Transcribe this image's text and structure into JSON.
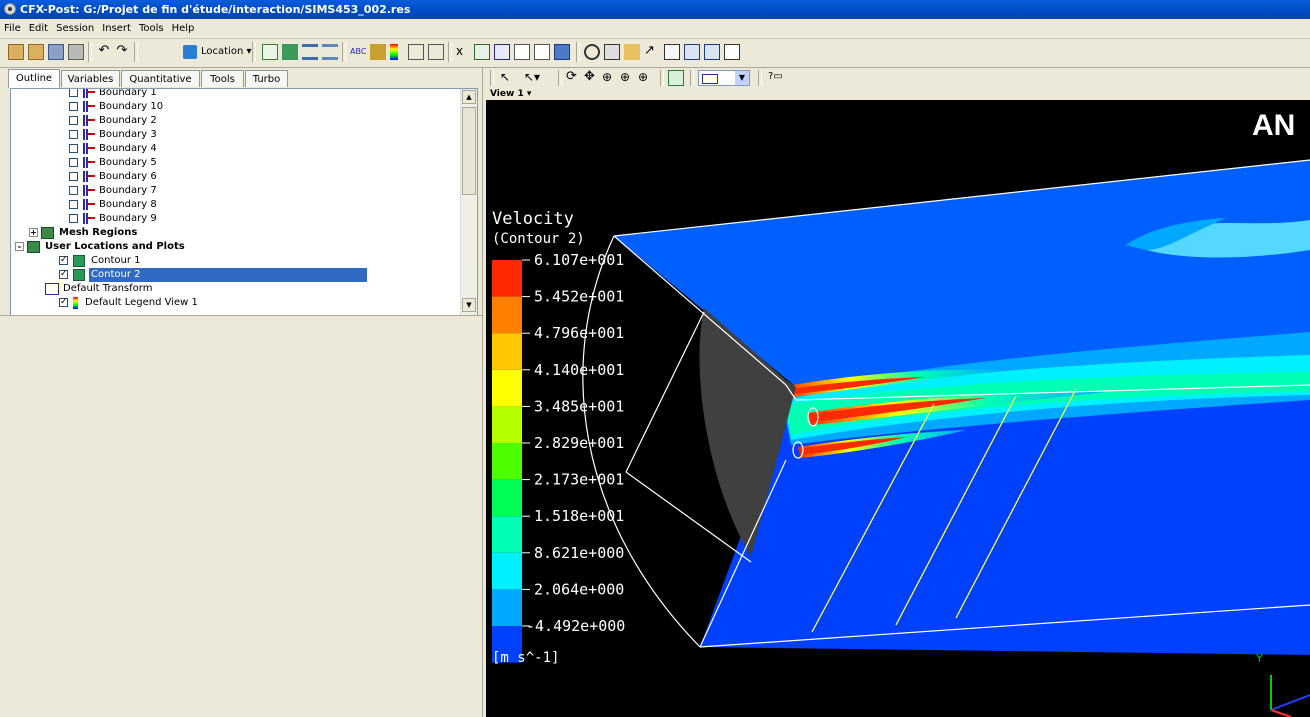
{
  "window": {
    "title": "CFX-Post: G:/Projet de fin d'étude/interaction/SIMS453_002.res"
  },
  "menu": [
    "File",
    "Edit",
    "Session",
    "Insert",
    "Tools",
    "Help"
  ],
  "toolbar": {
    "location_label": "Location"
  },
  "left_tabs": [
    "Outline",
    "Variables",
    "Quantitative",
    "Tools",
    "Turbo"
  ],
  "tree": {
    "boundaries": [
      "Boundary 1",
      "Boundary 10",
      "Boundary 2",
      "Boundary 3",
      "Boundary 4",
      "Boundary 5",
      "Boundary 6",
      "Boundary 7",
      "Boundary 8",
      "Boundary 9"
    ],
    "mesh_regions": "Mesh Regions",
    "user_locations": "User Locations and Plots",
    "contour1": "Contour 1",
    "contour2": "Contour 2",
    "default_transform": "Default Transform",
    "default_legend": "Default Legend View 1"
  },
  "view": {
    "name": "View 1",
    "brand": "AN"
  },
  "legend": {
    "title": "Velocity",
    "subtitle": "(Contour 2)",
    "unit": "[m s^-1]",
    "ticks": [
      "6.107e+001",
      "5.452e+001",
      "4.796e+001",
      "4.140e+001",
      "3.485e+001",
      "2.829e+001",
      "2.173e+001",
      "1.518e+001",
      "8.621e+000",
      "2.064e+000",
      "-4.492e+000"
    ],
    "colors": [
      "#FF2A00",
      "#FF7F00",
      "#FFC800",
      "#FFFF00",
      "#B4FF00",
      "#4CFF00",
      "#00FF55",
      "#00FFB4",
      "#00F0FF",
      "#00A8FF",
      "#0040FF"
    ]
  },
  "axis": {
    "y_label": "Y"
  },
  "colors": {
    "title_bar": "#0050C8",
    "selection": "#316AC5",
    "panel_bg": "#ECE9D8"
  }
}
